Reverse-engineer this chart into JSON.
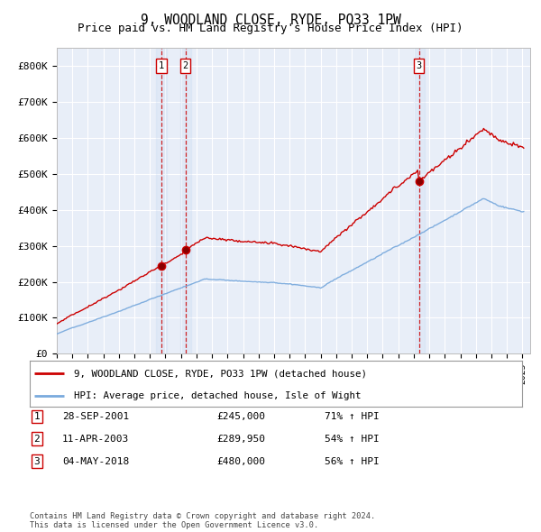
{
  "title": "9, WOODLAND CLOSE, RYDE, PO33 1PW",
  "subtitle": "Price paid vs. HM Land Registry's House Price Index (HPI)",
  "ylim": [
    0,
    850000
  ],
  "xlim_start": 1995.0,
  "xlim_end": 2025.5,
  "title_fontsize": 10.5,
  "subtitle_fontsize": 9,
  "background_color": "#ffffff",
  "plot_bg_color": "#e8eef8",
  "grid_color": "#ffffff",
  "red_line_color": "#cc0000",
  "blue_line_color": "#7aaadd",
  "sales": [
    {
      "num": 1,
      "date": "28-SEP-2001",
      "price": 245000,
      "year": 2001.75,
      "pct": "71%",
      "dir": "↑"
    },
    {
      "num": 2,
      "date": "11-APR-2003",
      "price": 289950,
      "year": 2003.28,
      "pct": "54%",
      "dir": "↑"
    },
    {
      "num": 3,
      "date": "04-MAY-2018",
      "price": 480000,
      "year": 2018.34,
      "pct": "56%",
      "dir": "↑"
    }
  ],
  "legend_label_red": "9, WOODLAND CLOSE, RYDE, PO33 1PW (detached house)",
  "legend_label_blue": "HPI: Average price, detached house, Isle of Wight",
  "footnote": "Contains HM Land Registry data © Crown copyright and database right 2024.\nThis data is licensed under the Open Government Licence v3.0.",
  "yticks": [
    0,
    100000,
    200000,
    300000,
    400000,
    500000,
    600000,
    700000,
    800000
  ],
  "ytick_labels": [
    "£0",
    "£100K",
    "£200K",
    "£300K",
    "£400K",
    "£500K",
    "£600K",
    "£700K",
    "£800K"
  ],
  "hpi_seed": 42,
  "red_seed": 77
}
